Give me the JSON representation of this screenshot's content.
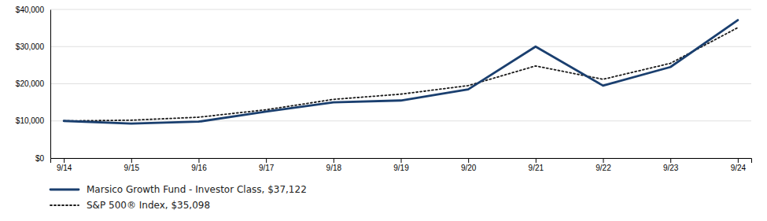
{
  "chart_data": {
    "type": "line",
    "categories": [
      "9/14",
      "9/15",
      "9/16",
      "9/17",
      "9/18",
      "9/19",
      "9/20",
      "9/21",
      "9/22",
      "9/23",
      "9/24"
    ],
    "series": [
      {
        "name": "Marsico Growth Fund - Investor Class, $37,122",
        "color": "#1A3F6F",
        "line_style": "solid",
        "values": [
          10000,
          9300,
          9800,
          12500,
          15000,
          15500,
          18500,
          30000,
          19500,
          24500,
          37122
        ]
      },
      {
        "name": "S&P 500® Index, $35,098",
        "color": "#1a1a1a",
        "line_style": "dotted",
        "values": [
          10000,
          10200,
          11000,
          13000,
          15800,
          17200,
          19500,
          24800,
          21200,
          25500,
          35098
        ]
      }
    ],
    "ylim": [
      0,
      40000
    ],
    "yticks": [
      {
        "value": 0,
        "label": "$0"
      },
      {
        "value": 10000,
        "label": "$10,000"
      },
      {
        "value": 20000,
        "label": "$20,000"
      },
      {
        "value": 30000,
        "label": "$30,000"
      },
      {
        "value": 40000,
        "label": "$40,000"
      }
    ],
    "grid": true,
    "legend": "bottom"
  }
}
